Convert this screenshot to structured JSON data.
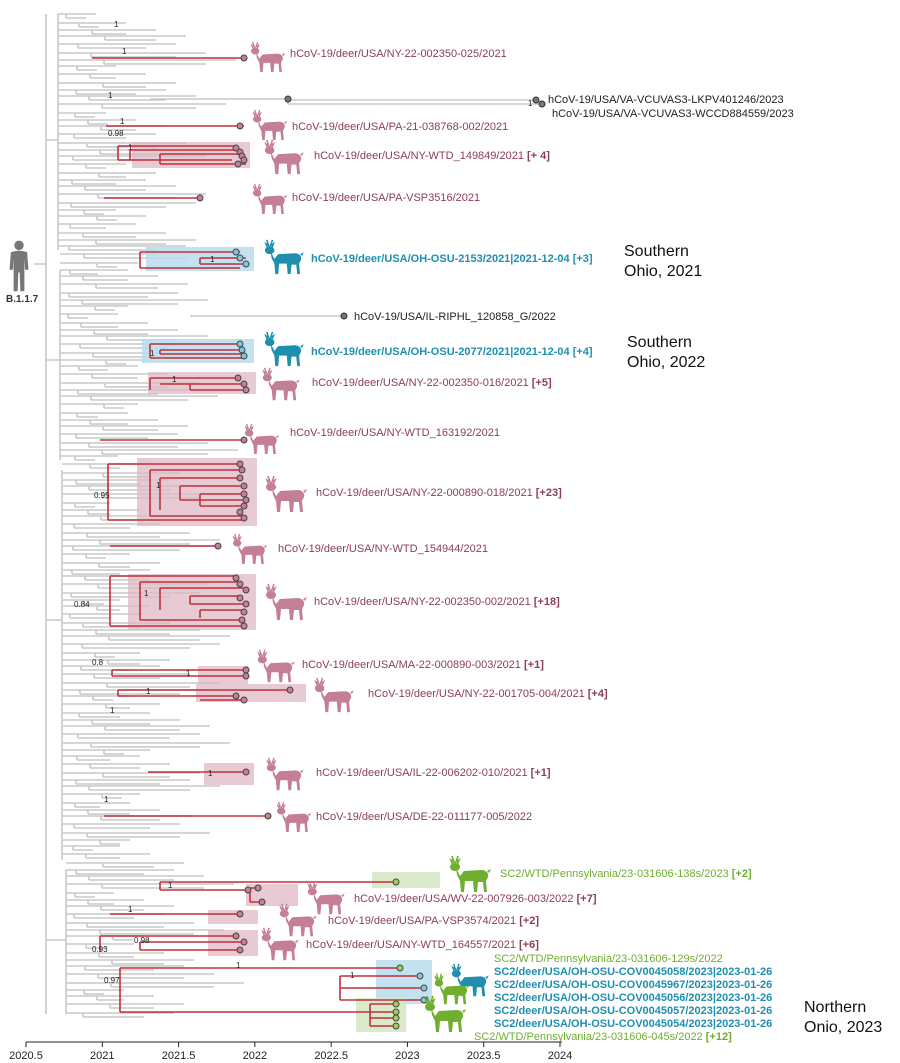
{
  "root_label": "B.1.1.7",
  "axis": {
    "ticks": [
      "2020.5",
      "2021",
      "2021.5",
      "2022",
      "2022.5",
      "2023",
      "2023.5",
      "2024"
    ]
  },
  "colors": {
    "deer_pink": "#c47f95",
    "deer_label": "#8c3d57",
    "ohio_blue": "#1f8fb0",
    "penn_green": "#6fae2e",
    "branch_red": "#c0303a",
    "branch_grey": "#c8c8c8",
    "clade_pink": "#dfb8c4",
    "clade_blue": "#b9dceb",
    "clade_green": "#d6e8c4"
  },
  "support_values": [
    "1",
    "1",
    "1",
    "0.98",
    "1",
    "1",
    "1",
    "1",
    "1",
    "1",
    "0.95",
    "1",
    "0.84",
    "1",
    "0.8",
    "1",
    "1",
    "1",
    "1",
    "1",
    "1",
    "1",
    "0.98",
    "0.93",
    "1",
    "0.97",
    "1"
  ],
  "tip_labels": [
    {
      "name": "hCoV-19/deer/USA/NY-22-002350-025/2021",
      "extra": "",
      "group": "deer",
      "icon": "deer-icon-pink"
    },
    {
      "name": "hCoV-19/USA/VA-VCUVAS3-LKPV401246/2023",
      "extra": "",
      "group": "human",
      "icon": ""
    },
    {
      "name": "hCoV-19/USA/VA-VCUVAS3-WCCD884559/2023",
      "extra": "",
      "group": "human",
      "icon": ""
    },
    {
      "name": "hCoV-19/deer/USA/PA-21-038768-002/2021",
      "extra": "",
      "group": "deer",
      "icon": "deer-icon-pink"
    },
    {
      "name": "hCoV-19/deer/USA/NY-WTD_149849/2021",
      "extra": "[+ 4]",
      "group": "deer",
      "icon": "deer-icon-pink"
    },
    {
      "name": "hCoV-19/deer/USA/PA-VSP3516/2021",
      "extra": "",
      "group": "deer",
      "icon": "deer-icon-pink"
    },
    {
      "name": "hCoV-19/deer/USA/OH-OSU-2153/2021|2021-12-04",
      "extra": "[+3]",
      "group": "ohio",
      "icon": "deer-icon-blue"
    },
    {
      "name": "hCoV-19/USA/IL-RIPHL_120858_G/2022",
      "extra": "",
      "group": "human",
      "icon": ""
    },
    {
      "name": "hCoV-19/deer/USA/OH-OSU-2077/2021|2021-12-04",
      "extra": "[+4]",
      "group": "ohio",
      "icon": "deer-icon-blue"
    },
    {
      "name": "hCoV-19/deer/USA/NY-22-002350-016/2021",
      "extra": "[+5]",
      "group": "deer",
      "icon": "deer-icon-pink"
    },
    {
      "name": "hCoV-19/deer/USA/NY-WTD_163192/2021",
      "extra": "",
      "group": "deer",
      "icon": "deer-icon-pink"
    },
    {
      "name": "hCoV-19/deer/USA/NY-22-000890-018/2021",
      "extra": "[+23]",
      "group": "deer",
      "icon": "deer-icon-pink"
    },
    {
      "name": "hCoV-19/deer/USA/NY-WTD_154944/2021",
      "extra": "",
      "group": "deer",
      "icon": "deer-icon-pink"
    },
    {
      "name": "hCoV-19/deer/USA/NY-22-002350-002/2021",
      "extra": "[+18]",
      "group": "deer",
      "icon": "deer-icon-pink"
    },
    {
      "name": "hCoV-19/deer/USA/MA-22-000890-003/2021",
      "extra": "[+1]",
      "group": "deer",
      "icon": "deer-icon-pink"
    },
    {
      "name": "hCoV-19/deer/USA/NY-22-001705-004/2021",
      "extra": "[+4]",
      "group": "deer",
      "icon": "deer-icon-pink"
    },
    {
      "name": "hCoV-19/deer/USA/IL-22-006202-010/2021",
      "extra": "[+1]",
      "group": "deer",
      "icon": "deer-icon-pink"
    },
    {
      "name": "hCoV-19/deer/USA/DE-22-011177-005/2022",
      "extra": "",
      "group": "deer",
      "icon": "deer-icon-pink"
    },
    {
      "name": "SC2/WTD/Pennsylvania/23-031606-138s/2023",
      "extra": "[+2]",
      "group": "green",
      "icon": "deer-icon-green"
    },
    {
      "name": "hCoV-19/deer/USA/WV-22-007926-003/2022",
      "extra": "[+7]",
      "group": "deer",
      "icon": "deer-icon-pink"
    },
    {
      "name": "hCoV-19/deer/USA/PA-VSP3574/2021",
      "extra": "[+2]",
      "group": "deer",
      "icon": "deer-icon-pink"
    },
    {
      "name": "hCoV-19/deer/USA/NY-WTD_164557/2021",
      "extra": "[+6]",
      "group": "deer",
      "icon": "deer-icon-pink"
    },
    {
      "name": "SC2/WTD/Pennsylvania/23-031606-129s/2022",
      "extra": "",
      "group": "green",
      "icon": ""
    },
    {
      "name": "SC2/deer/USA/OH-OSU-COV0045058/2023|2023-01-26",
      "extra": "",
      "group": "ohio",
      "icon": "deer-icon-blue"
    },
    {
      "name": "SC2/deer/USA/OH-OSU-COV0045967/2023|2023-01-26",
      "extra": "",
      "group": "ohio",
      "icon": ""
    },
    {
      "name": "SC2/deer/USA/OH-OSU-COV0045056/2023|2023-01-26",
      "extra": "",
      "group": "ohio",
      "icon": "deer-icon-green"
    },
    {
      "name": "SC2/deer/USA/OH-OSU-COV0045057/2023|2023-01-26",
      "extra": "",
      "group": "ohio",
      "icon": ""
    },
    {
      "name": "SC2/deer/USA/OH-OSU-COV0045054/2023|2023-01-26",
      "extra": "",
      "group": "ohio",
      "icon": ""
    },
    {
      "name": "SC2/WTD/Pennsylvania/23-031606-045s/2022",
      "extra": "[+12]",
      "group": "green",
      "icon": "deer-icon-green"
    }
  ],
  "region_labels": [
    {
      "line1": "Southern",
      "line2": "Ohio, 2021"
    },
    {
      "line1": "Southern",
      "line2": "Ohio, 2022"
    },
    {
      "line1": "Northern",
      "line2": "Onio, 2023"
    }
  ]
}
